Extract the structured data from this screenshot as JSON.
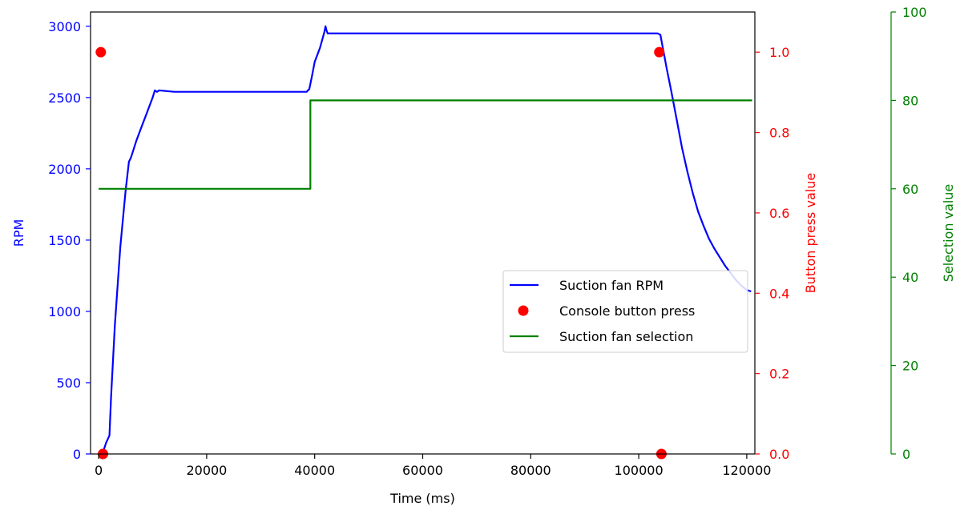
{
  "chart_data": {
    "type": "line",
    "xlabel": "Time (ms)",
    "xlim": [
      -1500,
      121500
    ],
    "xticks": [
      0,
      20000,
      40000,
      60000,
      80000,
      100000,
      120000
    ],
    "axes": {
      "left": {
        "label": "RPM",
        "color": "#0000ff",
        "ylim": [
          0,
          3100
        ],
        "ticks": [
          0,
          500,
          1000,
          1500,
          2000,
          2500,
          3000
        ]
      },
      "right": {
        "label": "Button press value",
        "color": "#ff0000",
        "ylim": [
          0,
          1.1
        ],
        "ticks": [
          0.0,
          0.2,
          0.4,
          0.6,
          0.8,
          1.0
        ],
        "tick_labels": [
          "0.0",
          "0.2",
          "0.4",
          "0.6",
          "0.8",
          "1.0"
        ]
      },
      "far_right": {
        "label": "Selection value",
        "color": "#008000",
        "ylim": [
          0,
          100
        ],
        "ticks": [
          0,
          20,
          40,
          60,
          80,
          100
        ]
      }
    },
    "series": [
      {
        "name": "Suction fan RPM",
        "kind": "line",
        "axis": "left",
        "color": "#0000ff",
        "x": [
          700,
          1400,
          2000,
          2300,
          3000,
          4000,
          5000,
          5600,
          6000,
          7000,
          8000,
          9000,
          10000,
          10400,
          10800,
          11200,
          14000,
          20000,
          30000,
          38500,
          39000,
          39500,
          40000,
          41000,
          41800,
          42000,
          42200,
          42400,
          43000,
          50000,
          60000,
          70000,
          80000,
          90000,
          100000,
          103500,
          104000,
          104300,
          104700,
          105200,
          106000,
          107000,
          108000,
          109000,
          110000,
          111000,
          112000,
          113000,
          114000,
          115000,
          116000,
          117000,
          118000,
          119000,
          120000,
          120800
        ],
        "y": [
          0,
          80,
          130,
          400,
          900,
          1450,
          1850,
          2050,
          2080,
          2200,
          2300,
          2400,
          2500,
          2550,
          2540,
          2550,
          2540,
          2540,
          2540,
          2540,
          2560,
          2650,
          2750,
          2850,
          2960,
          3000,
          2970,
          2950,
          2950,
          2950,
          2950,
          2950,
          2950,
          2950,
          2950,
          2950,
          2940,
          2880,
          2800,
          2700,
          2550,
          2350,
          2150,
          1980,
          1830,
          1700,
          1600,
          1510,
          1440,
          1380,
          1320,
          1270,
          1220,
          1180,
          1150,
          1140
        ]
      },
      {
        "name": "Console button press",
        "kind": "scatter",
        "axis": "right",
        "color": "#ff0000",
        "x": [
          400,
          800,
          103800,
          104200
        ],
        "y": [
          1.0,
          0.0,
          1.0,
          0.0
        ]
      },
      {
        "name": "Suction fan selection",
        "kind": "step",
        "axis": "far_right",
        "color": "#008000",
        "x": [
          0,
          39200,
          39200,
          121000
        ],
        "y": [
          60,
          60,
          80,
          80
        ]
      }
    ],
    "legend": {
      "position": "lower-right",
      "entries": [
        "Suction fan RPM",
        "Console button press",
        "Suction fan selection"
      ]
    },
    "grid": false
  }
}
